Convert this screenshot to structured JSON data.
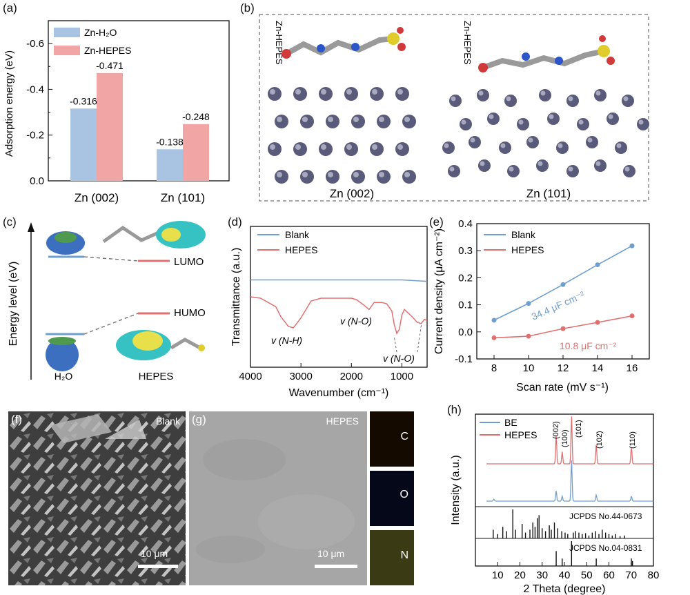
{
  "colors": {
    "blue": "#6e9fcf",
    "red": "#e07070",
    "bar_blue": "#a8c4e2",
    "bar_red": "#f2a5a5",
    "zn_atom": "#5a5a7a"
  },
  "panels": {
    "a": {
      "label": "(a)",
      "legend": [
        "Zn-H₂O",
        "Zn-HEPES"
      ],
      "ylabel": "Adsorption energy (eV)",
      "yticks": [
        "-0.6",
        "-0.4",
        "-0.2",
        "0.0"
      ],
      "categories": [
        "Zn (002)",
        "Zn (101)"
      ]
    },
    "b": {
      "label": "(b)",
      "mol_labels": [
        "Zn-HEPES",
        "Zn-HEPES"
      ],
      "surfaces": [
        "Zn (002)",
        "Zn (101)"
      ]
    },
    "c": {
      "label": "(c)",
      "ylabel": "Energy level (eV)",
      "lumo": "LUMO",
      "homo": "HUMO",
      "species": [
        "H₂O",
        "HEPES"
      ]
    },
    "d": {
      "label": "(d)",
      "ylabel": "Transmittance (a.u.)",
      "xlabel": "Wavenumber (cm⁻¹)",
      "xticks": [
        "4000",
        "3000",
        "2000",
        "1000"
      ],
      "legend": [
        "Blank",
        "HEPES"
      ],
      "annotations": [
        "v (N-H)",
        "v (N-O)",
        "v (N-O)"
      ]
    },
    "e": {
      "label": "(e)",
      "ylabel": "Current density (μA cm⁻²)",
      "xlabel": "Scan rate (mV s⁻¹)",
      "legend": [
        "Blank",
        "HEPES"
      ],
      "annotations": [
        "34.4 μF cm⁻²",
        "10.8 μF cm⁻²"
      ]
    },
    "f": {
      "label": "(f)",
      "title": "Blank",
      "scale": "10 μm"
    },
    "g": {
      "label": "(g)",
      "title": "HEPES",
      "scale": "10 μm",
      "eds": [
        "C",
        "O",
        "N"
      ]
    },
    "h": {
      "label": "(h)",
      "ylabel": "Intensity (a.u.)",
      "xlabel": "2 Theta (degree)",
      "legend": [
        "BE",
        "HEPES"
      ],
      "peaks": [
        "(002)",
        "(100)",
        "(101)",
        "(102)",
        "(110)"
      ],
      "refs": [
        "JCPDS No.44-0673",
        "JCPDS No.04-0831"
      ]
    }
  },
  "chart_data": [
    {
      "type": "bar",
      "panel": "a",
      "categories": [
        "Zn (002)",
        "Zn (101)"
      ],
      "series": [
        {
          "name": "Zn-H₂O",
          "values": [
            -0.316,
            -0.138
          ]
        },
        {
          "name": "Zn-HEPES",
          "values": [
            -0.471,
            -0.248
          ]
        }
      ],
      "data_labels": [
        [
          "-0.316",
          "-0.138"
        ],
        [
          "-0.471",
          "-0.248"
        ]
      ],
      "ylabel": "Adsorption energy (eV)",
      "ylim": [
        0.0,
        -0.7
      ],
      "yticks": [
        -0.6,
        -0.4,
        -0.2,
        0.0
      ],
      "legend": "top-left"
    },
    {
      "type": "line",
      "panel": "d",
      "xlim": [
        4000,
        500
      ],
      "xticks": [
        4000,
        3000,
        2000,
        1000
      ],
      "xlabel": "Wavenumber (cm⁻¹)",
      "ylabel": "Transmittance (a.u.)",
      "series": [
        {
          "name": "Blank",
          "x": [
            4000,
            3000,
            2000,
            1000,
            500
          ],
          "y": [
            0.62,
            0.62,
            0.62,
            0.62,
            0.61
          ]
        },
        {
          "name": "HEPES",
          "x": [
            4000,
            3800,
            3500,
            3400,
            3250,
            3150,
            3000,
            2800,
            2600,
            2400,
            2200,
            2000,
            1900,
            1750,
            1650,
            1550,
            1400,
            1300,
            1200,
            1150,
            1100,
            1050,
            1000,
            950,
            800,
            700,
            620,
            550,
            500
          ],
          "y": [
            0.5,
            0.49,
            0.43,
            0.36,
            0.29,
            0.28,
            0.35,
            0.47,
            0.49,
            0.49,
            0.49,
            0.49,
            0.48,
            0.44,
            0.41,
            0.46,
            0.46,
            0.45,
            0.4,
            0.3,
            0.24,
            0.27,
            0.37,
            0.41,
            0.36,
            0.32,
            0.31,
            0.34,
            0.33
          ]
        }
      ],
      "legend": "top-left"
    },
    {
      "type": "line",
      "panel": "e",
      "x": [
        8,
        10,
        12,
        14,
        16
      ],
      "xlim": [
        7,
        17
      ],
      "xticks": [
        8,
        10,
        12,
        14,
        16
      ],
      "ylim": [
        -0.1,
        0.4
      ],
      "yticks": [
        -0.1,
        0.0,
        0.1,
        0.2,
        0.3,
        0.4
      ],
      "xlabel": "Scan rate (mV s⁻¹)",
      "ylabel": "Current density (μA cm⁻²)",
      "series": [
        {
          "name": "Blank",
          "values": [
            0.043,
            0.105,
            0.175,
            0.248,
            0.318
          ]
        },
        {
          "name": "HEPES",
          "values": [
            -0.022,
            -0.016,
            0.012,
            0.035,
            0.059
          ]
        }
      ],
      "legend": "top-left"
    },
    {
      "type": "line",
      "panel": "h",
      "xlim": [
        0,
        80
      ],
      "xticks": [
        10,
        20,
        30,
        40,
        50,
        60,
        70,
        80
      ],
      "xlabel": "2 Theta (degree)",
      "ylabel": "Intensity (a.u.)",
      "series": [
        {
          "name": "HEPES",
          "peaks": [
            [
              36.3,
              0.6
            ],
            [
              39.0,
              0.25
            ],
            [
              43.2,
              1.0
            ],
            [
              54.3,
              0.4
            ],
            [
              70.1,
              0.35
            ]
          ]
        },
        {
          "name": "BE",
          "peaks": [
            [
              8.3,
              0.05
            ],
            [
              36.3,
              0.25
            ],
            [
              39.0,
              0.12
            ],
            [
              43.2,
              1.0
            ],
            [
              54.3,
              0.15
            ],
            [
              70.1,
              0.12
            ]
          ]
        }
      ],
      "references": [
        {
          "name": "JCPDS No.44-0673",
          "lines": [
            [
              8,
              0.3
            ],
            [
              10,
              0.15
            ],
            [
              12.3,
              0.4
            ],
            [
              14,
              0.25
            ],
            [
              16.8,
              1.0
            ],
            [
              18,
              0.3
            ],
            [
              21,
              0.5
            ],
            [
              22.5,
              0.2
            ],
            [
              24.5,
              0.3
            ],
            [
              25.8,
              0.55
            ],
            [
              26.8,
              0.4
            ],
            [
              27.8,
              0.7
            ],
            [
              28.6,
              0.8
            ],
            [
              30,
              0.35
            ],
            [
              31.5,
              0.25
            ],
            [
              33.2,
              0.45
            ],
            [
              34.1,
              0.3
            ],
            [
              35.5,
              0.55
            ],
            [
              37,
              0.35
            ],
            [
              38.8,
              0.25
            ],
            [
              40.3,
              0.2
            ],
            [
              41.5,
              0.15
            ],
            [
              44,
              0.2
            ],
            [
              45,
              0.25
            ],
            [
              46.5,
              0.2
            ],
            [
              48,
              0.15
            ],
            [
              49.5,
              0.18
            ],
            [
              51,
              0.1
            ],
            [
              52.5,
              0.2
            ],
            [
              54,
              0.25
            ],
            [
              55.5,
              0.15
            ],
            [
              57,
              0.3
            ],
            [
              58.5,
              0.2
            ],
            [
              60,
              0.15
            ],
            [
              61.5,
              0.1
            ],
            [
              63,
              0.15
            ],
            [
              65,
              0.08
            ],
            [
              67,
              0.1
            ]
          ]
        },
        {
          "name": "JCPDS No.04-0831",
          "lines": [
            [
              36.3,
              0.6
            ],
            [
              39.0,
              0.3
            ],
            [
              43.2,
              1.0
            ],
            [
              54.3,
              0.3
            ],
            [
              70.1,
              0.3
            ],
            [
              70.6,
              0.2
            ]
          ]
        }
      ],
      "legend": "top-left"
    }
  ]
}
